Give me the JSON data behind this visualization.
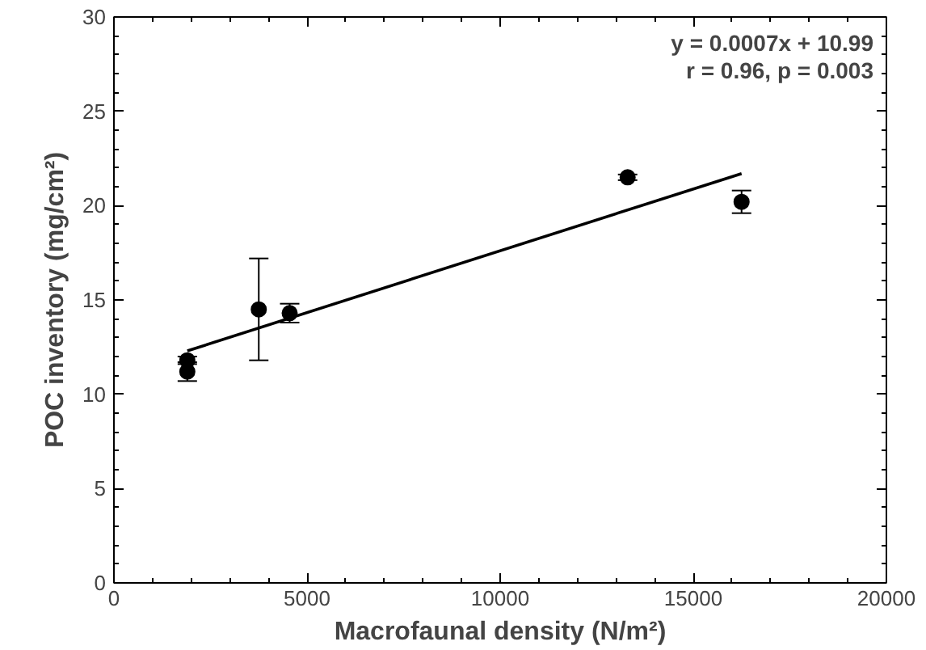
{
  "chart_data": {
    "type": "scatter",
    "xlabel": "Macrofaunal density (N/m²)",
    "ylabel": "POC inventory (mg/cm²)",
    "xlim": [
      0,
      20000
    ],
    "xticks": [
      0,
      5000,
      10000,
      15000,
      20000
    ],
    "ylim": [
      0,
      30
    ],
    "yticks": [
      0,
      5,
      10,
      15,
      20,
      25,
      30
    ],
    "annotations": [
      "y = 0.0007x + 10.99",
      "r = 0.96, p = 0.003"
    ],
    "grid": false,
    "series": [
      {
        "color": "#000000",
        "marker": "circle",
        "x": [
          1900,
          1900,
          3750,
          4550,
          13300,
          16250
        ],
        "values": [
          11.8,
          11.2,
          14.5,
          14.3,
          21.5,
          20.2
        ],
        "errors": [
          0.2,
          0.5,
          2.7,
          0.5,
          0.15,
          0.6
        ]
      },
      {
        "type": "line",
        "color": "#000000",
        "x": [
          1900,
          16250
        ],
        "values": [
          12.3,
          21.7
        ]
      }
    ]
  }
}
